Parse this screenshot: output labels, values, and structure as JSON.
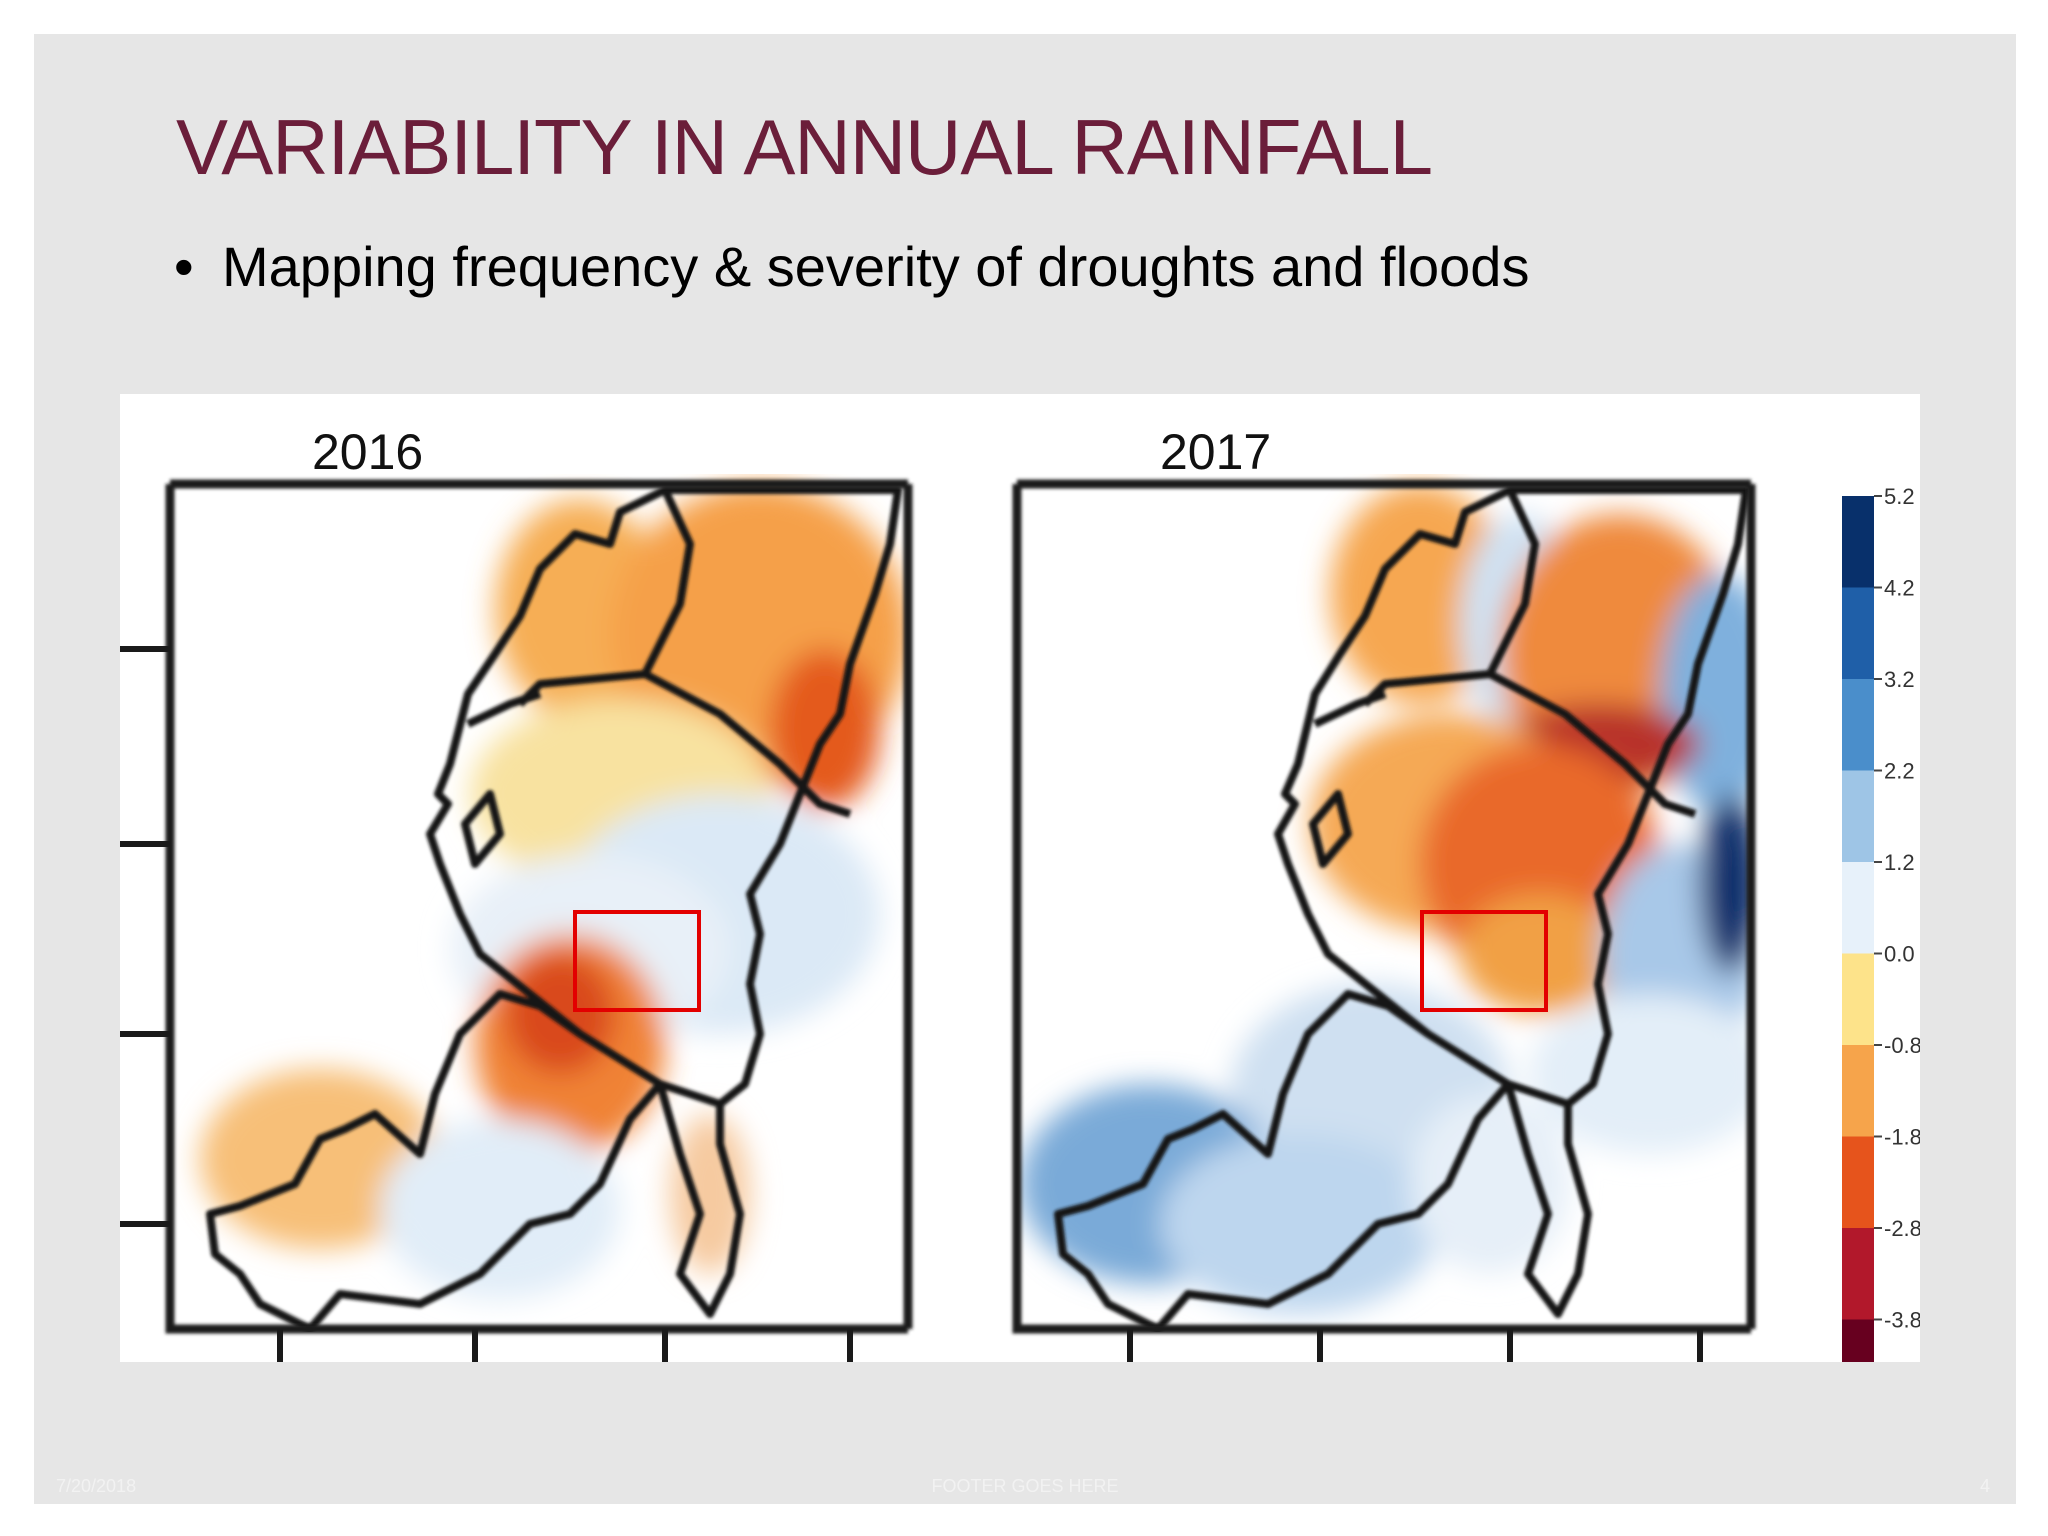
{
  "slide": {
    "title": "VARIABILITY IN ANNUAL RAINFALL",
    "bullet": "Mapping frequency & severity of droughts and floods",
    "footer": {
      "date": "7/20/2018",
      "center": "FOOTER GOES HERE",
      "page": "4"
    }
  },
  "figure": {
    "panels": [
      {
        "label": "2016"
      },
      {
        "label": "2017"
      }
    ],
    "colorbar": {
      "ticks": [
        "5.2",
        "4.2",
        "3.2",
        "2.2",
        "1.2",
        "0.0",
        "-0.8",
        "-1.8",
        "-2.8",
        "-3.8"
      ],
      "colors": [
        "#08306b",
        "#1f5fa8",
        "#4a8ecb",
        "#9ec5e6",
        "#e7f1fa",
        "#fde38a",
        "#f6a44b",
        "#e6541c",
        "#b2182b",
        "#67001f"
      ]
    },
    "highlight_color": "#e30000"
  }
}
